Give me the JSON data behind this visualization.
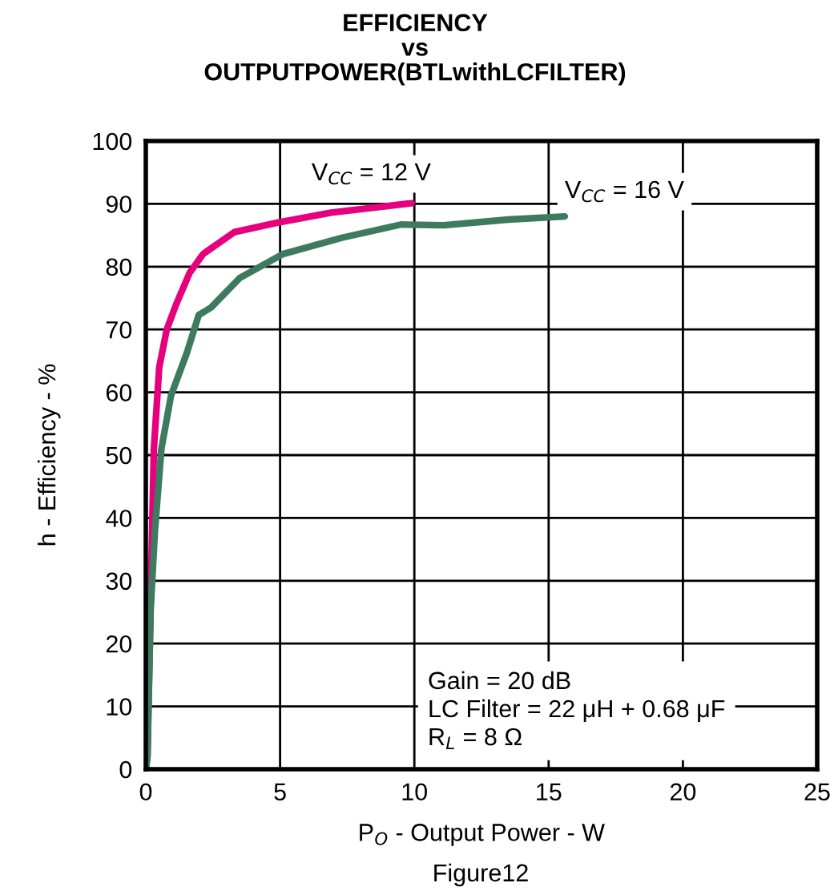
{
  "chart_data": {
    "type": "line",
    "title": "EFFICIENCY\nvs\nOUTPUTPOWER(BTLwithLCFILTER)",
    "xlabel": "P$_{O}$ - Output Power - W",
    "ylabel": "h - Efficiency - %",
    "annotations": [
      "Gain = 20 dB\nLC Filter = 22 μH + 0.68 μF\nR$_{L}$ = 8 Ω",
      "Figure12"
    ],
    "series": [
      {
        "name": "V$_{CC}$ = 12 V",
        "color": "#e6007e",
        "x": [
          0,
          0.06,
          0.3,
          0.5,
          0.78,
          1.13,
          1.63,
          2.13,
          3.3,
          4.9,
          6.9,
          9.9
        ],
        "values": [
          0,
          2,
          51,
          64,
          70,
          74,
          79,
          82,
          85.5,
          87,
          88.6,
          90.1
        ]
      },
      {
        "name": "V$_{CC}$ = 16 V",
        "color": "#3d7a5e",
        "x": [
          0,
          0.06,
          0.18,
          0.34,
          0.58,
          0.94,
          1.53,
          1.97,
          2.43,
          3.5,
          5.1,
          7.3,
          9.5,
          11.1,
          13.5,
          15.6
        ],
        "values": [
          0,
          2,
          25.5,
          38,
          51,
          59.5,
          66.3,
          72.3,
          73.5,
          78.2,
          82,
          84.6,
          86.7,
          86.6,
          87.5,
          88
        ]
      }
    ],
    "xlim": [
      0,
      25
    ],
    "xticks": [
      0,
      5,
      10,
      15,
      20,
      25
    ],
    "ylim": [
      0,
      100
    ],
    "yticks": [
      0,
      10,
      20,
      30,
      40,
      50,
      60,
      70,
      80,
      90,
      100
    ],
    "grid": true
  }
}
